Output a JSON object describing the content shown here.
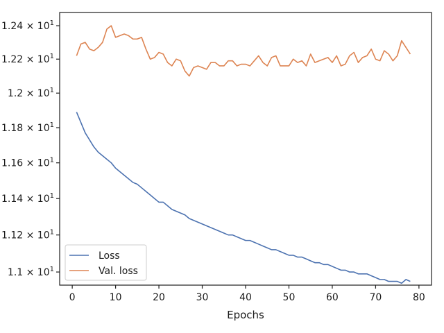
{
  "chart_data": {
    "type": "line",
    "title": "",
    "xlabel": "Epochs",
    "ylabel": "",
    "xlim": [
      -2.9,
      82.9
    ],
    "ylim": [
      10.93,
      12.48
    ],
    "x_ticks": [
      0,
      10,
      20,
      30,
      40,
      50,
      60,
      70,
      80
    ],
    "y_ticks": [
      {
        "value": 11.0,
        "mantissa": "1.1",
        "exponent": "1"
      },
      {
        "value": 11.2,
        "mantissa": "1.12",
        "exponent": "1"
      },
      {
        "value": 11.4,
        "mantissa": "1.14",
        "exponent": "1"
      },
      {
        "value": 11.6,
        "mantissa": "1.16",
        "exponent": "1"
      },
      {
        "value": 11.8,
        "mantissa": "1.18",
        "exponent": "1"
      },
      {
        "value": 12.0,
        "mantissa": "1.2",
        "exponent": "1"
      },
      {
        "value": 12.2,
        "mantissa": "1.22",
        "exponent": "1"
      },
      {
        "value": 12.4,
        "mantissa": "1.24",
        "exponent": "1"
      }
    ],
    "y_tick_times": "×",
    "y_tick_base": "10",
    "log_y": true,
    "grid": false,
    "legend_position": "lower-left",
    "x": [
      1,
      2,
      3,
      4,
      5,
      6,
      7,
      8,
      9,
      10,
      11,
      12,
      13,
      14,
      15,
      16,
      17,
      18,
      19,
      20,
      21,
      22,
      23,
      24,
      25,
      26,
      27,
      28,
      29,
      30,
      31,
      32,
      33,
      34,
      35,
      36,
      37,
      38,
      39,
      40,
      41,
      42,
      43,
      44,
      45,
      46,
      47,
      48,
      49,
      50,
      51,
      52,
      53,
      54,
      55,
      56,
      57,
      58,
      59,
      60,
      61,
      62,
      63,
      64,
      65,
      66,
      67,
      68,
      69,
      70,
      71,
      72,
      73,
      74,
      75,
      76,
      77,
      78
    ],
    "series": [
      {
        "name": "Loss",
        "color": "#4c72b0",
        "values": [
          11.89,
          11.83,
          11.77,
          11.73,
          11.69,
          11.66,
          11.64,
          11.62,
          11.6,
          11.57,
          11.55,
          11.53,
          11.51,
          11.49,
          11.48,
          11.46,
          11.44,
          11.42,
          11.4,
          11.38,
          11.38,
          11.36,
          11.34,
          11.33,
          11.32,
          11.31,
          11.29,
          11.28,
          11.27,
          11.26,
          11.25,
          11.24,
          11.23,
          11.22,
          11.21,
          11.2,
          11.2,
          11.19,
          11.18,
          11.17,
          11.17,
          11.16,
          11.15,
          11.14,
          11.13,
          11.12,
          11.12,
          11.11,
          11.1,
          11.09,
          11.09,
          11.08,
          11.08,
          11.07,
          11.06,
          11.05,
          11.05,
          11.04,
          11.04,
          11.03,
          11.02,
          11.01,
          11.01,
          11.0,
          11.0,
          10.99,
          10.99,
          10.99,
          10.98,
          10.97,
          10.96,
          10.96,
          10.95,
          10.95,
          10.95,
          10.94,
          10.96,
          10.95
        ]
      },
      {
        "name": "Val. loss",
        "color": "#dd8452",
        "values": [
          12.22,
          12.29,
          12.3,
          12.26,
          12.25,
          12.27,
          12.3,
          12.38,
          12.4,
          12.33,
          12.34,
          12.35,
          12.34,
          12.32,
          12.32,
          12.33,
          12.26,
          12.2,
          12.21,
          12.24,
          12.23,
          12.18,
          12.16,
          12.2,
          12.19,
          12.13,
          12.1,
          12.15,
          12.16,
          12.15,
          12.14,
          12.18,
          12.18,
          12.16,
          12.16,
          12.19,
          12.19,
          12.16,
          12.17,
          12.17,
          12.16,
          12.19,
          12.22,
          12.18,
          12.16,
          12.21,
          12.22,
          12.16,
          12.16,
          12.16,
          12.2,
          12.18,
          12.19,
          12.16,
          12.23,
          12.18,
          12.19,
          12.2,
          12.21,
          12.18,
          12.22,
          12.16,
          12.17,
          12.22,
          12.24,
          12.18,
          12.21,
          12.22,
          12.26,
          12.2,
          12.19,
          12.25,
          12.23,
          12.19,
          12.22,
          12.31,
          12.27,
          12.23
        ]
      }
    ]
  }
}
